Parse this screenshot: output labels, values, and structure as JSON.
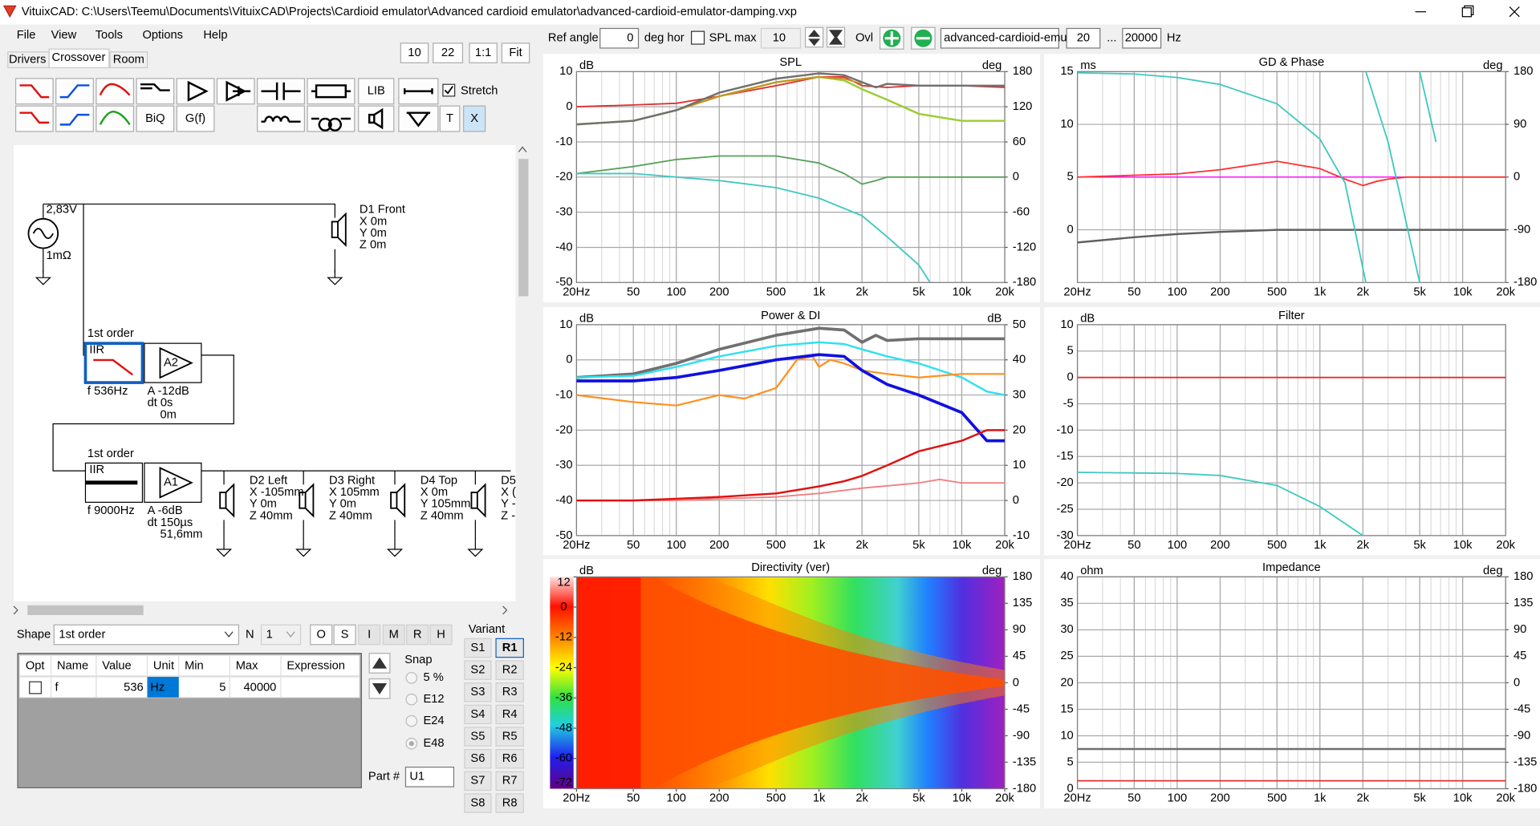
{
  "title_bar": {
    "title": "VituixCAD: C:\\Users\\Teemu\\Documents\\VituixCAD\\Projects\\Cardioid emulator\\Advanced cardioid emulator\\advanced-cardioid-emulator-damping.vxp"
  },
  "menu": [
    "File",
    "View",
    "Tools",
    "Options",
    "Help"
  ],
  "zoom_buttons": [
    "10",
    "22",
    "1:1",
    "Fit"
  ],
  "tabs": [
    "Drivers",
    "Crossover",
    "Room"
  ],
  "toolbar": {
    "lib": "LIB",
    "biq": "BiQ",
    "gf": "G(f)",
    "t": "T",
    "x": "X",
    "stretch": "Stretch"
  },
  "schematic": {
    "source_voltage": "2,83V",
    "source_resistance": "1mΩ",
    "drivers": [
      {
        "name": "D1 Front",
        "x": "X 0m",
        "y": "Y 0m",
        "z": "Z 0m"
      },
      {
        "name": "D2 Left",
        "x": "X -105mm",
        "y": "Y 0m",
        "z": "Z 40mm"
      },
      {
        "name": "D3 Right",
        "x": "X 105mm",
        "y": "Y 0m",
        "z": "Z 40mm"
      },
      {
        "name": "D4 Top",
        "x": "X 0m",
        "y": "Y 105mm",
        "z": "Z 40mm"
      },
      {
        "name": "D5",
        "x": "X (",
        "y": "Y -",
        "z": "Z -"
      }
    ],
    "filters": [
      {
        "order": "1st order",
        "type": "IIR",
        "gain_block": "A2",
        "f": "f  536Hz",
        "a": "A  -12dB",
        "dt": "dt 0s",
        "dist": "0m"
      },
      {
        "order": "1st order",
        "type": "IIR",
        "gain_block": "A1",
        "f": "f  9000Hz",
        "a": "A  -6dB",
        "dt": "dt 150µs",
        "dist": "51,6mm"
      }
    ]
  },
  "properties": {
    "shape_label": "Shape",
    "shape": "1st order",
    "n_label": "N",
    "n": "1",
    "buttons": [
      "O",
      "S",
      "I",
      "M",
      "R",
      "H"
    ],
    "columns": [
      "Opt",
      "Name",
      "Value",
      "Unit",
      "Min",
      "Max",
      "Expression"
    ],
    "row": {
      "name": "f",
      "value": 536,
      "unit": "Hz",
      "min": 5,
      "max": 40000
    },
    "snap_label": "Snap",
    "snap": [
      "5 %",
      "E12",
      "E24",
      "E48"
    ],
    "part_label": "Part #",
    "part": "U1"
  },
  "variant": {
    "label": "Variant",
    "s": [
      "S1",
      "S2",
      "S3",
      "S4",
      "S5",
      "S6",
      "S7",
      "S8"
    ],
    "r": [
      "R1",
      "R2",
      "R3",
      "R4",
      "R5",
      "R6",
      "R7",
      "R8"
    ]
  },
  "top_toolbar": {
    "ref_angle_label": "Ref angle",
    "ref_angle": 0,
    "deg_hor": "deg hor",
    "spl_max_label": "SPL max",
    "spl_max": 10,
    "ovl": "Ovl",
    "file": "advanced-cardioid-emul",
    "f_min": 20,
    "ellipsis": "...",
    "f_max": 20000,
    "hz": "Hz"
  },
  "charts": [
    {
      "type": "line",
      "title": "SPL",
      "left_unit": "dB",
      "right_unit": "deg",
      "log_x": true,
      "xlim": [
        20,
        20000
      ],
      "xticks": [
        {
          "value": 20,
          "label": "20Hz"
        },
        50,
        100,
        200,
        500,
        {
          "value": 1000,
          "label": "1k"
        },
        {
          "value": 2000,
          "label": "2k"
        },
        {
          "value": 5000,
          "label": "5k"
        },
        {
          "value": 10000,
          "label": "10k"
        },
        {
          "value": 20000,
          "label": "20k"
        }
      ],
      "ylim": [
        -50,
        10
      ],
      "yticks": [
        10,
        0,
        -10,
        -20,
        -30,
        -40,
        -50
      ],
      "y2lim": [
        -180,
        180
      ],
      "y2ticks": [
        180,
        120,
        60,
        0,
        -60,
        -120,
        -180
      ],
      "grid": true,
      "series": [
        {
          "color": "#e03030",
          "width": 1.5,
          "x": [
            20,
            50,
            100,
            200,
            500,
            1000,
            1500,
            2000,
            3000,
            5000,
            10000,
            20000
          ],
          "values": [
            0,
            0.5,
            1,
            3,
            6,
            8.5,
            8.5,
            6,
            5.5,
            6,
            6,
            5.5
          ]
        },
        {
          "color": "#9acd32",
          "width": 2,
          "x": [
            20,
            50,
            100,
            200,
            500,
            1000,
            1500,
            2000,
            3000,
            5000,
            10000,
            20000
          ],
          "values": [
            -5,
            -4,
            -1,
            3,
            7,
            8.5,
            7.5,
            5,
            2,
            -2,
            -4,
            -4
          ]
        },
        {
          "color": "#d08a20",
          "width": 1.5,
          "x": [
            20,
            50,
            100,
            200,
            500,
            1000,
            1500,
            2000
          ],
          "values": [
            -5,
            -4,
            -1,
            3,
            7,
            8.5,
            8,
            6.5
          ]
        },
        {
          "color": "#707070",
          "width": 2,
          "x": [
            20,
            50,
            100,
            200,
            500,
            1000,
            1500,
            2000,
            2500,
            3000,
            5000,
            10000,
            20000
          ],
          "values": [
            -5,
            -4,
            -1,
            4,
            8,
            9.5,
            9,
            7,
            5.5,
            6.5,
            6,
            6,
            6
          ]
        },
        {
          "color": "#5aa05a",
          "width": 1.5,
          "x": [
            20,
            50,
            100,
            200,
            500,
            1000,
            1500,
            2000,
            2500,
            3000,
            5000,
            10000,
            20000
          ],
          "values": [
            -19,
            -17,
            -15,
            -14,
            -14,
            -16,
            -19,
            -22,
            -21,
            -20,
            -20,
            -20,
            -20
          ]
        },
        {
          "color": "#40c8c0",
          "width": 1.5,
          "x": [
            20,
            50,
            100,
            200,
            500,
            1000,
            2000,
            3000,
            5000,
            6000
          ],
          "values": [
            -19,
            -19,
            -20,
            -21,
            -23,
            -26,
            -31,
            -37,
            -45,
            -50
          ]
        }
      ]
    },
    {
      "type": "line",
      "title": "GD & Phase",
      "left_unit": "ms",
      "right_unit": "deg",
      "log_x": true,
      "xlim": [
        20,
        20000
      ],
      "xticks": [
        {
          "value": 20,
          "label": "20Hz"
        },
        50,
        100,
        200,
        500,
        {
          "value": 1000,
          "label": "1k"
        },
        {
          "value": 2000,
          "label": "2k"
        },
        {
          "value": 5000,
          "label": "5k"
        },
        {
          "value": 10000,
          "label": "10k"
        },
        {
          "value": 20000,
          "label": "20k"
        }
      ],
      "ylim": [
        -5,
        15
      ],
      "yticks": [
        15,
        10,
        5,
        0
      ],
      "y2lim": [
        -180,
        180
      ],
      "y2ticks": [
        180,
        90,
        0,
        -90,
        -180
      ],
      "grid": true,
      "series": [
        {
          "color": "#ff00ff",
          "width": 1.2,
          "x": [
            20,
            20000
          ],
          "values": [
            5,
            5
          ]
        },
        {
          "color": "#ff3030",
          "width": 1.5,
          "x": [
            20,
            100,
            200,
            500,
            1000,
            1500,
            2000,
            2500,
            3000,
            4000,
            6000,
            20000
          ],
          "values": [
            5,
            5.3,
            5.7,
            6.5,
            5.8,
            4.8,
            4.2,
            4.6,
            4.8,
            5,
            5,
            5
          ]
        },
        {
          "color": "#606060",
          "width": 2,
          "x": [
            20,
            50,
            100,
            200,
            500,
            1000,
            2000,
            20000
          ],
          "values": [
            -1.2,
            -0.7,
            -0.4,
            -0.2,
            0,
            0,
            0,
            0
          ]
        },
        {
          "color": "#40c8c0",
          "width": 1.5,
          "axis": "y2",
          "x": [
            20,
            50,
            100,
            200,
            500,
            1000,
            1500,
            2100,
            2100,
            2100,
            3000,
            5000,
            5000,
            5000,
            6500
          ],
          "values": [
            178,
            176,
            170,
            158,
            125,
            65,
            -10,
            -180,
            null,
            180,
            60,
            -180,
            null,
            180,
            60
          ]
        }
      ]
    },
    {
      "type": "line",
      "title": "Power & DI",
      "left_unit": "dB",
      "right_unit": "dB",
      "log_x": true,
      "xlim": [
        20,
        20000
      ],
      "xticks": [
        {
          "value": 20,
          "label": "20Hz"
        },
        50,
        100,
        200,
        500,
        {
          "value": 1000,
          "label": "1k"
        },
        {
          "value": 2000,
          "label": "2k"
        },
        {
          "value": 5000,
          "label": "5k"
        },
        {
          "value": 10000,
          "label": "10k"
        },
        {
          "value": 20000,
          "label": "20k"
        }
      ],
      "ylim": [
        -50,
        10
      ],
      "yticks": [
        10,
        0,
        -10,
        -20,
        -30,
        -40,
        -50
      ],
      "y2lim": [
        -10,
        50
      ],
      "y2ticks": [
        50,
        40,
        30,
        20,
        10,
        0,
        -10
      ],
      "grid": true,
      "series": [
        {
          "color": "#707070",
          "width": 3,
          "x": [
            20,
            50,
            100,
            200,
            500,
            1000,
            1500,
            2000,
            2500,
            3000,
            5000,
            10000,
            20000
          ],
          "values": [
            -5,
            -4,
            -1,
            3,
            7,
            9,
            8.5,
            5,
            7,
            5.5,
            6,
            6,
            6
          ]
        },
        {
          "color": "#30e0f0",
          "width": 2,
          "x": [
            20,
            50,
            100,
            200,
            500,
            1000,
            1500,
            2000,
            3000,
            5000,
            10000,
            15000,
            20000
          ],
          "values": [
            -5,
            -4.5,
            -2,
            1,
            4,
            5,
            4.5,
            3,
            1,
            -1,
            -5,
            -9,
            -10
          ]
        },
        {
          "color": "#ff9020",
          "width": 1.8,
          "x": [
            20,
            50,
            100,
            200,
            300,
            500,
            700,
            900,
            1000,
            1200,
            1500,
            2000,
            3000,
            5000,
            10000,
            20000
          ],
          "values": [
            -10,
            -12,
            -13,
            -10,
            -11,
            -8,
            0,
            1,
            -2,
            0,
            -1,
            -3,
            -4,
            -5,
            -4,
            -4
          ]
        },
        {
          "color": "#1010e0",
          "width": 3,
          "x": [
            20,
            50,
            100,
            200,
            500,
            1000,
            1500,
            2000,
            3000,
            5000,
            10000,
            15000,
            20000
          ],
          "values": [
            -6,
            -6,
            -5,
            -3,
            0,
            1.5,
            1,
            -3,
            -7,
            -10,
            -15,
            -23,
            -23
          ]
        },
        {
          "color": "#f08080",
          "width": 1.5,
          "axis": "y2",
          "x": [
            20,
            50,
            100,
            200,
            500,
            1000,
            2000,
            5000,
            7000,
            10000,
            20000
          ],
          "values": [
            0,
            0,
            0,
            0.5,
            1,
            2,
            3.5,
            5,
            6,
            5,
            5
          ]
        },
        {
          "color": "#e01010",
          "width": 2,
          "axis": "y2",
          "x": [
            20,
            50,
            100,
            200,
            500,
            1000,
            1500,
            2000,
            3000,
            5000,
            10000,
            15000,
            20000
          ],
          "values": [
            0,
            0,
            0.5,
            1,
            2,
            4,
            5.5,
            7,
            10,
            14,
            17,
            20,
            20
          ]
        }
      ]
    },
    {
      "type": "line",
      "title": "Filter",
      "left_unit": "dB",
      "log_x": true,
      "xlim": [
        20,
        20000
      ],
      "xticks": [
        {
          "value": 20,
          "label": "20Hz"
        },
        50,
        100,
        200,
        500,
        {
          "value": 1000,
          "label": "1k"
        },
        {
          "value": 2000,
          "label": "2k"
        },
        {
          "value": 5000,
          "label": "5k"
        },
        {
          "value": 10000,
          "label": "10k"
        },
        {
          "value": 20000,
          "label": "20k"
        }
      ],
      "ylim": [
        -30,
        10
      ],
      "yticks": [
        10,
        5,
        0,
        -5,
        -10,
        -15,
        -20,
        -25,
        -30
      ],
      "grid": true,
      "series": [
        {
          "color": "#e03030",
          "width": 1.5,
          "x": [
            20,
            20000
          ],
          "values": [
            0,
            0
          ]
        },
        {
          "color": "#40c8c0",
          "width": 1.5,
          "x": [
            20,
            100,
            200,
            500,
            1000,
            2000
          ],
          "values": [
            -18,
            -18.2,
            -18.6,
            -20.5,
            -24.5,
            -30
          ]
        }
      ]
    },
    {
      "type": "heatmap",
      "title": "Directivity (ver)",
      "left_unit": "dB",
      "right_unit": "deg",
      "log_x": true,
      "xlim": [
        20,
        20000
      ],
      "xticks": [
        {
          "value": 20,
          "label": "20Hz"
        },
        50,
        100,
        200,
        500,
        {
          "value": 1000,
          "label": "1k"
        },
        {
          "value": 2000,
          "label": "2k"
        },
        {
          "value": 5000,
          "label": "5k"
        },
        {
          "value": 10000,
          "label": "10k"
        },
        {
          "value": 20000,
          "label": "20k"
        }
      ],
      "ylim": [
        -72,
        12
      ],
      "yticks": [
        12,
        0,
        -12,
        -24,
        -36,
        -48,
        -60,
        -72
      ],
      "y2lim": [
        -180,
        180
      ],
      "y2ticks": [
        180,
        135,
        90,
        45,
        0,
        -45,
        -90,
        -135,
        -180
      ]
    },
    {
      "type": "line",
      "title": "Impedance",
      "left_unit": "ohm",
      "right_unit": "deg",
      "log_x": true,
      "xlim": [
        20,
        20000
      ],
      "xticks": [
        {
          "value": 20,
          "label": "20Hz"
        },
        50,
        100,
        200,
        500,
        {
          "value": 1000,
          "label": "1k"
        },
        {
          "value": 2000,
          "label": "2k"
        },
        {
          "value": 5000,
          "label": "5k"
        },
        {
          "value": 10000,
          "label": "10k"
        },
        {
          "value": 20000,
          "label": "20k"
        }
      ],
      "ylim": [
        0,
        40
      ],
      "yticks": [
        40,
        35,
        30,
        25,
        20,
        15,
        10,
        5,
        0
      ],
      "y2lim": [
        -180,
        180
      ],
      "y2ticks": [
        180,
        135,
        90,
        45,
        0,
        -45,
        -90,
        -135,
        -180
      ],
      "grid": true,
      "series": [
        {
          "color": "#707070",
          "width": 2,
          "x": [
            20,
            20000
          ],
          "values": [
            7.5,
            7.5
          ]
        },
        {
          "color": "#e03030",
          "width": 1.5,
          "x": [
            20,
            20000
          ],
          "values": [
            1.5,
            1.5
          ]
        }
      ]
    }
  ]
}
